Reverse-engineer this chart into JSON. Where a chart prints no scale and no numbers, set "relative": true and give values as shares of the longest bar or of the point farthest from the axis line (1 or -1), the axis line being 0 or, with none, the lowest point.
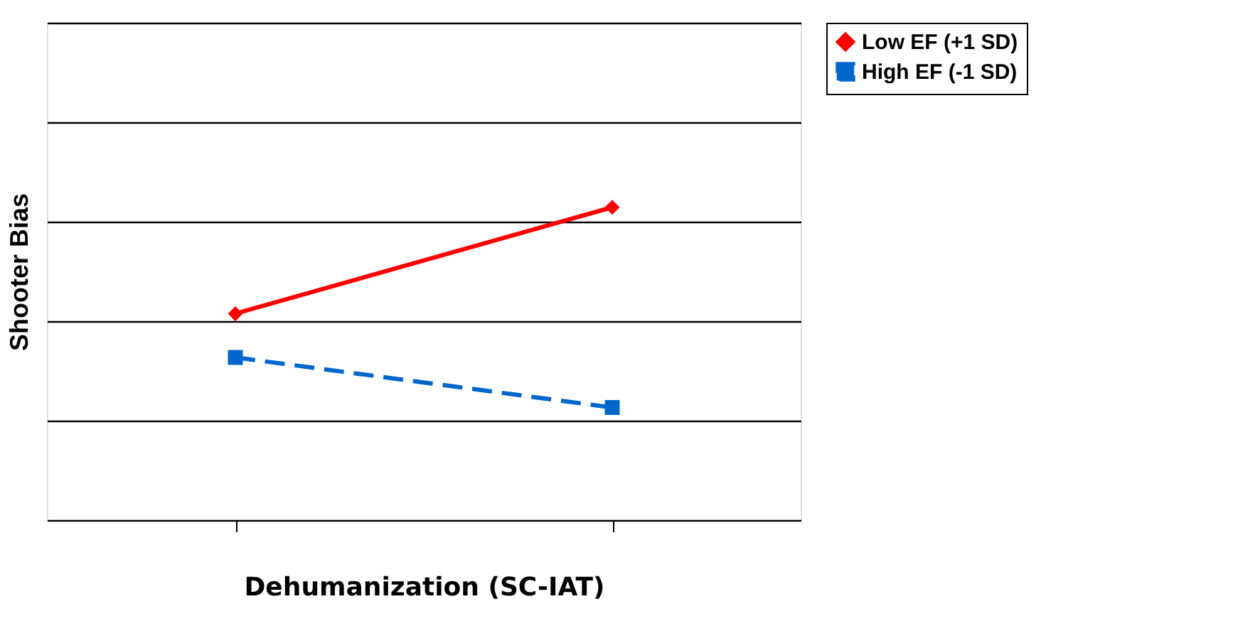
{
  "chart_data": {
    "type": "line",
    "relative": true,
    "xlabel": "Dehumanization (SC-IAT)",
    "ylabel": "Shooter Bias",
    "categories": [
      null,
      null
    ],
    "grid": "y",
    "legend": "right",
    "series": [
      {
        "name": "Low EF (+1 SD)",
        "color": "#ff0000",
        "values": [
          0.66,
          1
        ],
        "marker": "diamond",
        "line_style": "solid"
      },
      {
        "name": "High EF (-1 SD)",
        "color": "#0066cc",
        "values": [
          0.52,
          0.36
        ],
        "marker": "square",
        "line_style": "dashed"
      }
    ]
  }
}
